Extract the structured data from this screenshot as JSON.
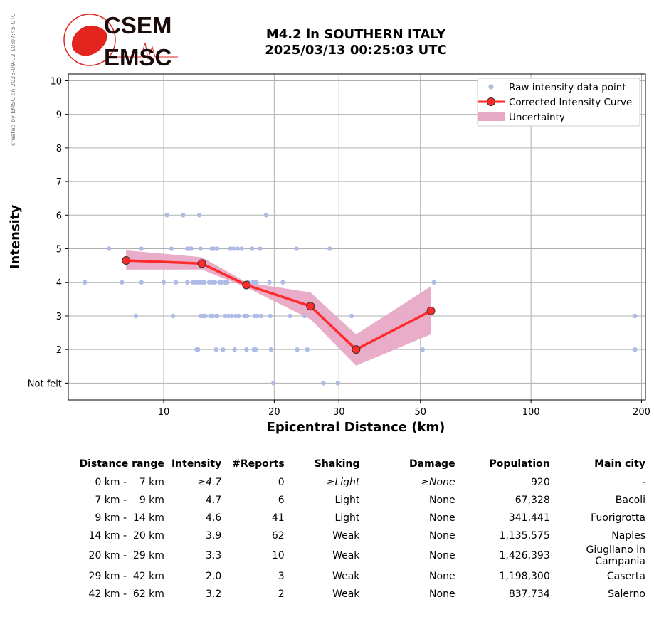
{
  "credit": "created by EMSC on 2025-09-02 10:07:45 UTC",
  "logo": {
    "top": "CSEM",
    "bottom": "EMSC"
  },
  "title": {
    "line1": "M4.2 in SOUTHERN ITALY",
    "line2": "2025/03/13 00:25:03 UTC"
  },
  "chart_data": {
    "type": "scatter",
    "xlabel": "Epicentral Distance (km)",
    "ylabel": "Intensity",
    "x_scale": "log",
    "xlim": [
      5.5,
      205
    ],
    "ylim": [
      0.5,
      10.2
    ],
    "x_ticks": [
      10,
      20,
      30,
      50,
      100,
      200
    ],
    "y_ticks": [
      1,
      2,
      3,
      4,
      5,
      6,
      7,
      8,
      9,
      10
    ],
    "y_tick_labels": [
      "Not felt",
      "2",
      "3",
      "4",
      "5",
      "6",
      "7",
      "8",
      "9",
      "10"
    ],
    "grid": true,
    "legend_position": "top-right",
    "legend": [
      "Raw intensity data point",
      "Corrected Intensity Curve",
      "Uncertainty"
    ],
    "colors": {
      "raw": "#aebbe6",
      "curve": "#ff2a2a",
      "marker_edge": "#333333",
      "uncertainty": "#e8a9c6"
    },
    "raw_points": [
      [
        6.1,
        4
      ],
      [
        7.1,
        5
      ],
      [
        7.7,
        4
      ],
      [
        8.4,
        3
      ],
      [
        8.7,
        5
      ],
      [
        8.7,
        4
      ],
      [
        10.0,
        4
      ],
      [
        10.2,
        6
      ],
      [
        10.5,
        5
      ],
      [
        10.6,
        3
      ],
      [
        10.8,
        4
      ],
      [
        11.3,
        6
      ],
      [
        11.6,
        4
      ],
      [
        11.6,
        5
      ],
      [
        11.8,
        5
      ],
      [
        11.9,
        5
      ],
      [
        12.0,
        4
      ],
      [
        12.1,
        4
      ],
      [
        12.3,
        4
      ],
      [
        12.3,
        2
      ],
      [
        12.4,
        2
      ],
      [
        12.5,
        4
      ],
      [
        12.5,
        6
      ],
      [
        12.6,
        5
      ],
      [
        12.6,
        4
      ],
      [
        12.6,
        3
      ],
      [
        12.8,
        3
      ],
      [
        12.8,
        4
      ],
      [
        12.9,
        4
      ],
      [
        13.0,
        3
      ],
      [
        13.3,
        4
      ],
      [
        13.4,
        3
      ],
      [
        13.5,
        5
      ],
      [
        13.6,
        3
      ],
      [
        13.6,
        4
      ],
      [
        13.7,
        5
      ],
      [
        13.8,
        4
      ],
      [
        13.9,
        3
      ],
      [
        13.9,
        2
      ],
      [
        14.0,
        5
      ],
      [
        14.0,
        3
      ],
      [
        14.2,
        4
      ],
      [
        14.4,
        4
      ],
      [
        14.5,
        2
      ],
      [
        14.7,
        3
      ],
      [
        14.7,
        4
      ],
      [
        14.9,
        4
      ],
      [
        15.0,
        3
      ],
      [
        15.2,
        5
      ],
      [
        15.3,
        3
      ],
      [
        15.5,
        5
      ],
      [
        15.6,
        2
      ],
      [
        15.7,
        3
      ],
      [
        15.9,
        5
      ],
      [
        16.0,
        3
      ],
      [
        16.3,
        5
      ],
      [
        16.6,
        3
      ],
      [
        16.8,
        2
      ],
      [
        16.8,
        3
      ],
      [
        16.9,
        3
      ],
      [
        17.0,
        4
      ],
      [
        17.4,
        5
      ],
      [
        17.5,
        4
      ],
      [
        17.6,
        2
      ],
      [
        17.7,
        4
      ],
      [
        17.7,
        3
      ],
      [
        17.8,
        2
      ],
      [
        17.9,
        4
      ],
      [
        18.0,
        3
      ],
      [
        18.3,
        5
      ],
      [
        18.4,
        3
      ],
      [
        19.0,
        6
      ],
      [
        19.4,
        4
      ],
      [
        19.5,
        3
      ],
      [
        19.6,
        2
      ],
      [
        19.9,
        1
      ],
      [
        21.1,
        4
      ],
      [
        22.1,
        3
      ],
      [
        23.0,
        5
      ],
      [
        23.1,
        2
      ],
      [
        24.2,
        3
      ],
      [
        24.6,
        2
      ],
      [
        27.2,
        1
      ],
      [
        28.3,
        5
      ],
      [
        29.8,
        1
      ],
      [
        32.5,
        3
      ],
      [
        50.7,
        2
      ],
      [
        54.4,
        4
      ],
      [
        192,
        3
      ],
      [
        192,
        2
      ]
    ],
    "curve": {
      "x": [
        7.9,
        12.7,
        16.8,
        25.1,
        33.4,
        53.4
      ],
      "y": [
        4.65,
        4.56,
        3.92,
        3.29,
        2.0,
        3.15
      ]
    },
    "uncertainty": {
      "x": [
        7.9,
        12.7,
        16.8,
        25.1,
        33.4,
        53.4
      ],
      "lower": [
        4.38,
        4.38,
        3.85,
        2.9,
        1.52,
        2.45
      ],
      "upper": [
        4.95,
        4.75,
        4.0,
        3.7,
        2.45,
        3.88
      ]
    }
  },
  "table": {
    "headers": [
      "Distance range",
      "Intensity",
      "#Reports",
      "Shaking",
      "Damage",
      "Population",
      "Main city"
    ],
    "rows": [
      [
        "0 km -",
        "7 km",
        "≥4.7",
        "0",
        "≥Light",
        "≥None",
        "920",
        "-"
      ],
      [
        "7 km -",
        "9 km",
        "4.7",
        "6",
        "Light",
        "None",
        "67,328",
        "Bacoli"
      ],
      [
        "9 km -",
        "14 km",
        "4.6",
        "41",
        "Light",
        "None",
        "341,441",
        "Fuorigrotta"
      ],
      [
        "14 km -",
        "20 km",
        "3.9",
        "62",
        "Weak",
        "None",
        "1,135,575",
        "Naples"
      ],
      [
        "20 km -",
        "29 km",
        "3.3",
        "10",
        "Weak",
        "None",
        "1,426,393",
        "Giugliano in Campania"
      ],
      [
        "29 km -",
        "42 km",
        "2.0",
        "3",
        "Weak",
        "None",
        "1,198,300",
        "Caserta"
      ],
      [
        "42 km -",
        "62 km",
        "3.2",
        "2",
        "Weak",
        "None",
        "837,734",
        "Salerno"
      ]
    ]
  }
}
